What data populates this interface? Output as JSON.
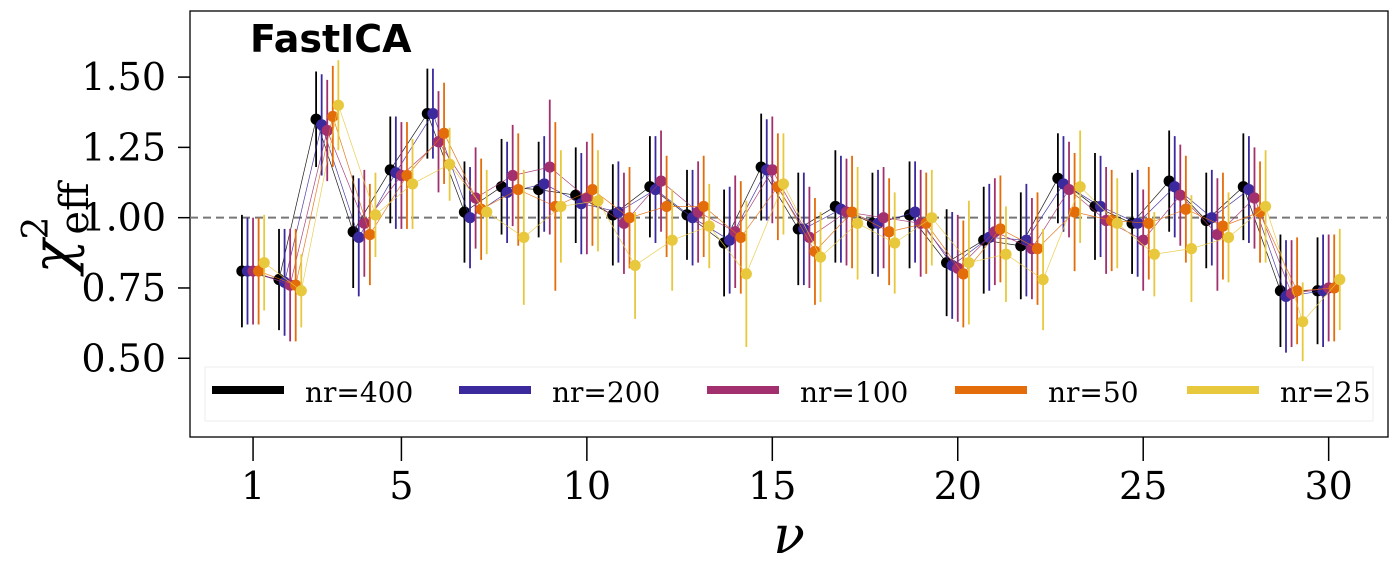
{
  "chart_data": {
    "type": "scatter",
    "title": "FastICA",
    "xlabel": "ν",
    "ylabel_main": "χ",
    "ylabel_sup": "2",
    "ylabel_sub": "eff",
    "xlim": [
      -0.7,
      31.6
    ],
    "ylim": [
      0.22,
      1.735
    ],
    "xticks": [
      1,
      5,
      10,
      15,
      20,
      25,
      30
    ],
    "xtick_labels": [
      "1",
      "5",
      "10",
      "15",
      "20",
      "25",
      "30"
    ],
    "yticks": [
      0.5,
      0.75,
      1.0,
      1.25,
      1.5
    ],
    "ytick_labels": [
      "0.50",
      "0.75",
      "1.00",
      "1.25",
      "1.50"
    ],
    "reference_line": 1.0,
    "legend_position": "bottom",
    "x": [
      1,
      2,
      3,
      4,
      5,
      6,
      7,
      8,
      9,
      10,
      11,
      12,
      13,
      14,
      15,
      16,
      17,
      18,
      19,
      20,
      21,
      22,
      23,
      24,
      25,
      26,
      27,
      28,
      29,
      30
    ],
    "series": [
      {
        "name": "nr=400",
        "color": "#000000",
        "offset": -0.3,
        "values": [
          0.81,
          0.78,
          1.35,
          0.95,
          1.17,
          1.37,
          1.02,
          1.11,
          1.1,
          1.08,
          1.01,
          1.11,
          1.01,
          0.91,
          1.18,
          0.96,
          1.04,
          0.98,
          1.01,
          0.84,
          0.92,
          0.9,
          1.14,
          1.04,
          0.98,
          1.13,
          0.99,
          1.11,
          0.74,
          0.74
        ],
        "errors": [
          0.2,
          0.18,
          0.17,
          0.2,
          0.19,
          0.16,
          0.18,
          0.17,
          0.17,
          0.17,
          0.18,
          0.18,
          0.16,
          0.19,
          0.19,
          0.2,
          0.2,
          0.18,
          0.19,
          0.19,
          0.19,
          0.19,
          0.16,
          0.19,
          0.18,
          0.18,
          0.17,
          0.19,
          0.2,
          0.19
        ]
      },
      {
        "name": "nr=200",
        "color": "#3a2a9e",
        "offset": -0.15,
        "values": [
          0.81,
          0.77,
          1.33,
          0.93,
          1.16,
          1.37,
          1.0,
          1.09,
          1.12,
          1.05,
          1.02,
          1.1,
          1.0,
          0.92,
          1.17,
          0.96,
          1.03,
          0.98,
          1.02,
          0.83,
          0.93,
          0.92,
          1.12,
          1.04,
          0.98,
          1.11,
          1.0,
          1.1,
          0.72,
          0.74
        ],
        "errors": [
          0.19,
          0.19,
          0.18,
          0.21,
          0.2,
          0.16,
          0.18,
          0.18,
          0.17,
          0.18,
          0.18,
          0.19,
          0.17,
          0.19,
          0.18,
          0.2,
          0.19,
          0.19,
          0.18,
          0.19,
          0.19,
          0.2,
          0.17,
          0.18,
          0.19,
          0.18,
          0.17,
          0.19,
          0.2,
          0.2
        ]
      },
      {
        "name": "nr=100",
        "color": "#a3306e",
        "offset": 0.0,
        "values": [
          0.81,
          0.76,
          1.31,
          0.98,
          1.15,
          1.27,
          1.07,
          1.15,
          1.18,
          1.07,
          0.98,
          1.13,
          1.02,
          0.95,
          1.17,
          0.93,
          1.02,
          1.0,
          0.98,
          0.82,
          0.95,
          0.89,
          1.1,
          0.99,
          0.92,
          1.08,
          0.94,
          1.07,
          0.73,
          0.75
        ],
        "errors": [
          0.19,
          0.2,
          0.18,
          0.19,
          0.19,
          0.18,
          0.18,
          0.18,
          0.24,
          0.2,
          0.18,
          0.18,
          0.18,
          0.2,
          0.19,
          0.18,
          0.19,
          0.18,
          0.19,
          0.19,
          0.19,
          0.18,
          0.17,
          0.19,
          0.18,
          0.18,
          0.2,
          0.18,
          0.19,
          0.19
        ]
      },
      {
        "name": "nr=50",
        "color": "#e36c0b",
        "offset": 0.15,
        "values": [
          0.81,
          0.76,
          1.36,
          0.94,
          1.15,
          1.3,
          1.03,
          1.1,
          1.04,
          1.1,
          1.0,
          1.04,
          1.04,
          0.93,
          1.11,
          0.88,
          1.02,
          0.95,
          0.98,
          0.8,
          0.96,
          0.89,
          1.02,
          0.99,
          0.98,
          1.03,
          0.97,
          1.02,
          0.74,
          0.75
        ],
        "errors": [
          0.19,
          0.2,
          0.18,
          0.18,
          0.19,
          0.18,
          0.18,
          0.2,
          0.3,
          0.2,
          0.18,
          0.18,
          0.18,
          0.2,
          0.19,
          0.19,
          0.2,
          0.19,
          0.18,
          0.19,
          0.19,
          0.2,
          0.21,
          0.18,
          0.2,
          0.19,
          0.19,
          0.18,
          0.19,
          0.19
        ]
      },
      {
        "name": "nr=25",
        "color": "#e8c93e",
        "offset": 0.3,
        "values": [
          0.84,
          0.74,
          1.4,
          1.01,
          1.12,
          1.19,
          1.02,
          0.93,
          1.04,
          1.06,
          0.83,
          0.92,
          0.97,
          0.8,
          1.12,
          0.86,
          0.98,
          0.91,
          1.0,
          0.84,
          0.87,
          0.78,
          1.11,
          0.98,
          0.87,
          0.89,
          0.93,
          1.04,
          0.63,
          0.78
        ],
        "errors": [
          0.17,
          0.13,
          0.16,
          0.15,
          0.16,
          0.13,
          0.15,
          0.24,
          0.2,
          0.18,
          0.19,
          0.18,
          0.15,
          0.26,
          0.18,
          0.16,
          0.2,
          0.18,
          0.17,
          0.22,
          0.17,
          0.18,
          0.2,
          0.16,
          0.15,
          0.19,
          0.16,
          0.2,
          0.14,
          0.18
        ]
      }
    ]
  }
}
